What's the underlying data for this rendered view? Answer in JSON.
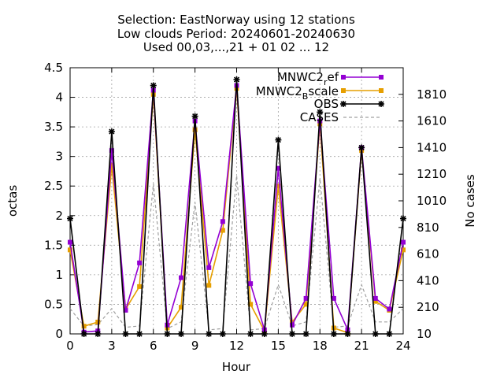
{
  "chart_data": {
    "type": "line",
    "title_lines": [
      "Selection: EastNorway using    12 stations",
      "Low clouds   Period: 20240601-20240630",
      "Used 00,03,...,21 + 01 02 ... 12"
    ],
    "xlabel": "Hour",
    "ylabel": "octas",
    "y2label": "No cases",
    "xlim": [
      0,
      24
    ],
    "ylim": [
      0,
      4.5
    ],
    "y2lim": [
      10,
      2010
    ],
    "xticks": [
      0,
      3,
      6,
      9,
      12,
      15,
      18,
      21,
      24
    ],
    "yticks": [
      "0",
      "0.5",
      "1",
      "1.5",
      "2",
      "2.5",
      "3",
      "3.5",
      "4",
      "4.5"
    ],
    "y2ticks": [
      "10",
      "210",
      "410",
      "610",
      "810",
      "1010",
      "1210",
      "1410",
      "1610",
      "1810"
    ],
    "grid": true,
    "legend_position": "top-right",
    "legend": {
      "ref_base": "MNWC2",
      "ref_sub": "r",
      "ref_tail": "ef",
      "bscale_base": "MNWC2",
      "bscale_sub": "B",
      "bscale_tail": "scale",
      "obs": "OBS",
      "cases": "CASES"
    },
    "x": [
      0,
      1,
      2,
      3,
      4,
      5,
      6,
      7,
      8,
      9,
      10,
      11,
      12,
      13,
      14,
      15,
      16,
      17,
      18,
      19,
      20,
      21,
      22,
      23,
      24
    ],
    "series": [
      {
        "name": "MNWC2ref",
        "axis": "y",
        "color": "#9400d3",
        "marker": "square",
        "values": [
          1.55,
          0.03,
          0.05,
          3.1,
          0.4,
          1.2,
          4.12,
          0.15,
          0.95,
          3.6,
          1.12,
          1.9,
          4.2,
          0.85,
          0.07,
          2.8,
          0.15,
          0.6,
          3.6,
          0.6,
          0.07,
          3.15,
          0.6,
          0.42,
          1.55
        ]
      },
      {
        "name": "MNWC2Bscale",
        "axis": "y",
        "color": "#e69f00",
        "marker": "square",
        "values": [
          1.42,
          0.13,
          0.2,
          2.85,
          0.42,
          0.8,
          4.05,
          0.1,
          0.45,
          3.45,
          0.82,
          1.75,
          4.15,
          0.5,
          0.05,
          2.5,
          0.2,
          0.5,
          3.55,
          0.1,
          0.02,
          3.1,
          0.55,
          0.4,
          1.42
        ]
      },
      {
        "name": "OBS",
        "axis": "y",
        "color": "#000000",
        "marker": "star",
        "values": [
          1.95,
          0,
          0,
          3.42,
          0,
          0,
          4.2,
          0,
          0,
          3.68,
          0,
          0,
          4.3,
          0,
          0,
          3.28,
          0,
          0,
          3.75,
          0,
          0,
          3.15,
          0,
          0,
          1.95
        ]
      },
      {
        "name": "CASES",
        "axis": "y2",
        "color": "#a0a0a0",
        "dashed": true,
        "values": [
          200,
          70,
          80,
          200,
          60,
          70,
          1140,
          50,
          100,
          1000,
          40,
          50,
          1200,
          40,
          50,
          380,
          70,
          100,
          1180,
          60,
          70,
          380,
          100,
          100,
          200
        ]
      }
    ]
  }
}
